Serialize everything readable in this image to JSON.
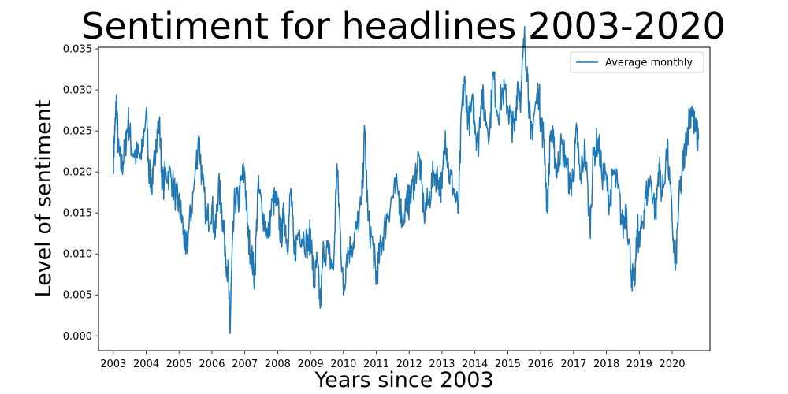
{
  "chart_data": {
    "type": "line",
    "title": "Sentiment for headlines 2003-2020",
    "xlabel": "Years since 2003",
    "ylabel": "Level of sentiment",
    "xlim": [
      2002.55,
      2021.15
    ],
    "ylim": [
      -0.0018,
      0.0352
    ],
    "x_ticks": [
      "2003",
      "2004",
      "2005",
      "2006",
      "2007",
      "2008",
      "2009",
      "2010",
      "2011",
      "2012",
      "2013",
      "2014",
      "2015",
      "2016",
      "2017",
      "2018",
      "2019",
      "2020"
    ],
    "y_ticks": [
      "0.000",
      "0.005",
      "0.010",
      "0.015",
      "0.020",
      "0.025",
      "0.030",
      "0.035"
    ],
    "grid": false,
    "legend_position": "top-right",
    "line_color": "#1f77b4",
    "series": [
      {
        "name": "Average monthly",
        "points": [
          [
            2003.0,
            0.0215
          ],
          [
            2003.05,
            0.025
          ],
          [
            2003.1,
            0.029
          ],
          [
            2003.15,
            0.0225
          ],
          [
            2003.25,
            0.0205
          ],
          [
            2003.35,
            0.0225
          ],
          [
            2003.45,
            0.0265
          ],
          [
            2003.55,
            0.023
          ],
          [
            2003.7,
            0.022
          ],
          [
            2003.85,
            0.0215
          ],
          [
            2004.0,
            0.0275
          ],
          [
            2004.1,
            0.0195
          ],
          [
            2004.2,
            0.0185
          ],
          [
            2004.3,
            0.024
          ],
          [
            2004.4,
            0.026
          ],
          [
            2004.5,
            0.018
          ],
          [
            2004.6,
            0.02
          ],
          [
            2004.75,
            0.0195
          ],
          [
            2004.9,
            0.017
          ],
          [
            2005.0,
            0.016
          ],
          [
            2005.1,
            0.014
          ],
          [
            2005.2,
            0.01
          ],
          [
            2005.3,
            0.013
          ],
          [
            2005.45,
            0.018
          ],
          [
            2005.6,
            0.0245
          ],
          [
            2005.7,
            0.019
          ],
          [
            2005.85,
            0.014
          ],
          [
            2006.0,
            0.016
          ],
          [
            2006.1,
            0.012
          ],
          [
            2006.2,
            0.0185
          ],
          [
            2006.3,
            0.0155
          ],
          [
            2006.4,
            0.011
          ],
          [
            2006.5,
            0.007
          ],
          [
            2006.55,
            0.0003
          ],
          [
            2006.6,
            0.008
          ],
          [
            2006.7,
            0.017
          ],
          [
            2006.8,
            0.016
          ],
          [
            2006.9,
            0.019
          ],
          [
            2007.0,
            0.02
          ],
          [
            2007.1,
            0.012
          ],
          [
            2007.2,
            0.01
          ],
          [
            2007.3,
            0.007
          ],
          [
            2007.4,
            0.018
          ],
          [
            2007.55,
            0.015
          ],
          [
            2007.7,
            0.012
          ],
          [
            2007.85,
            0.0165
          ],
          [
            2008.0,
            0.016
          ],
          [
            2008.1,
            0.012
          ],
          [
            2008.2,
            0.015
          ],
          [
            2008.3,
            0.011
          ],
          [
            2008.4,
            0.018
          ],
          [
            2008.5,
            0.01
          ],
          [
            2008.65,
            0.013
          ],
          [
            2008.8,
            0.012
          ],
          [
            2008.95,
            0.011
          ],
          [
            2009.0,
            0.013
          ],
          [
            2009.1,
            0.006
          ],
          [
            2009.2,
            0.009
          ],
          [
            2009.3,
            0.0035
          ],
          [
            2009.4,
            0.011
          ],
          [
            2009.55,
            0.01
          ],
          [
            2009.7,
            0.008
          ],
          [
            2009.8,
            0.021
          ],
          [
            2009.9,
            0.013
          ],
          [
            2010.0,
            0.005
          ],
          [
            2010.1,
            0.01
          ],
          [
            2010.25,
            0.011
          ],
          [
            2010.4,
            0.013
          ],
          [
            2010.55,
            0.016
          ],
          [
            2010.65,
            0.025
          ],
          [
            2010.75,
            0.014
          ],
          [
            2010.9,
            0.011
          ],
          [
            2011.0,
            0.007
          ],
          [
            2011.1,
            0.01
          ],
          [
            2011.2,
            0.012
          ],
          [
            2011.35,
            0.015
          ],
          [
            2011.5,
            0.017
          ],
          [
            2011.65,
            0.018
          ],
          [
            2011.8,
            0.014
          ],
          [
            2011.95,
            0.017
          ],
          [
            2012.0,
            0.016
          ],
          [
            2012.15,
            0.019
          ],
          [
            2012.3,
            0.022
          ],
          [
            2012.45,
            0.015
          ],
          [
            2012.6,
            0.0165
          ],
          [
            2012.75,
            0.02
          ],
          [
            2012.9,
            0.019
          ],
          [
            2013.0,
            0.018
          ],
          [
            2013.1,
            0.025
          ],
          [
            2013.2,
            0.02
          ],
          [
            2013.35,
            0.018
          ],
          [
            2013.5,
            0.015
          ],
          [
            2013.6,
            0.028
          ],
          [
            2013.7,
            0.031
          ],
          [
            2013.8,
            0.026
          ],
          [
            2013.95,
            0.028
          ],
          [
            2014.0,
            0.026
          ],
          [
            2014.1,
            0.023
          ],
          [
            2014.2,
            0.03
          ],
          [
            2014.3,
            0.027
          ],
          [
            2014.45,
            0.025
          ],
          [
            2014.55,
            0.032
          ],
          [
            2014.7,
            0.027
          ],
          [
            2014.85,
            0.03
          ],
          [
            2015.0,
            0.028
          ],
          [
            2015.1,
            0.026
          ],
          [
            2015.2,
            0.025
          ],
          [
            2015.3,
            0.031
          ],
          [
            2015.4,
            0.029
          ],
          [
            2015.5,
            0.0365
          ],
          [
            2015.6,
            0.032
          ],
          [
            2015.7,
            0.024
          ],
          [
            2015.8,
            0.027
          ],
          [
            2015.95,
            0.03
          ],
          [
            2016.0,
            0.026
          ],
          [
            2016.1,
            0.024
          ],
          [
            2016.2,
            0.015
          ],
          [
            2016.3,
            0.025
          ],
          [
            2016.4,
            0.023
          ],
          [
            2016.5,
            0.02
          ],
          [
            2016.6,
            0.023
          ],
          [
            2016.75,
            0.022
          ],
          [
            2016.9,
            0.018
          ],
          [
            2017.0,
            0.02
          ],
          [
            2017.1,
            0.025
          ],
          [
            2017.2,
            0.019
          ],
          [
            2017.35,
            0.023
          ],
          [
            2017.5,
            0.013
          ],
          [
            2017.6,
            0.022
          ],
          [
            2017.75,
            0.024
          ],
          [
            2017.85,
            0.02
          ],
          [
            2018.0,
            0.019
          ],
          [
            2018.1,
            0.016
          ],
          [
            2018.2,
            0.02
          ],
          [
            2018.35,
            0.018
          ],
          [
            2018.5,
            0.013
          ],
          [
            2018.6,
            0.016
          ],
          [
            2018.75,
            0.008
          ],
          [
            2018.85,
            0.006
          ],
          [
            2018.95,
            0.013
          ],
          [
            2019.0,
            0.011
          ],
          [
            2019.1,
            0.014
          ],
          [
            2019.2,
            0.017
          ],
          [
            2019.35,
            0.019
          ],
          [
            2019.5,
            0.015
          ],
          [
            2019.6,
            0.021
          ],
          [
            2019.7,
            0.017
          ],
          [
            2019.85,
            0.023
          ],
          [
            2020.0,
            0.014
          ],
          [
            2020.1,
            0.008
          ],
          [
            2020.2,
            0.016
          ],
          [
            2020.3,
            0.02
          ],
          [
            2020.4,
            0.023
          ],
          [
            2020.5,
            0.026
          ],
          [
            2020.6,
            0.028
          ],
          [
            2020.7,
            0.025
          ],
          [
            2020.8,
            0.024
          ]
        ]
      }
    ]
  }
}
